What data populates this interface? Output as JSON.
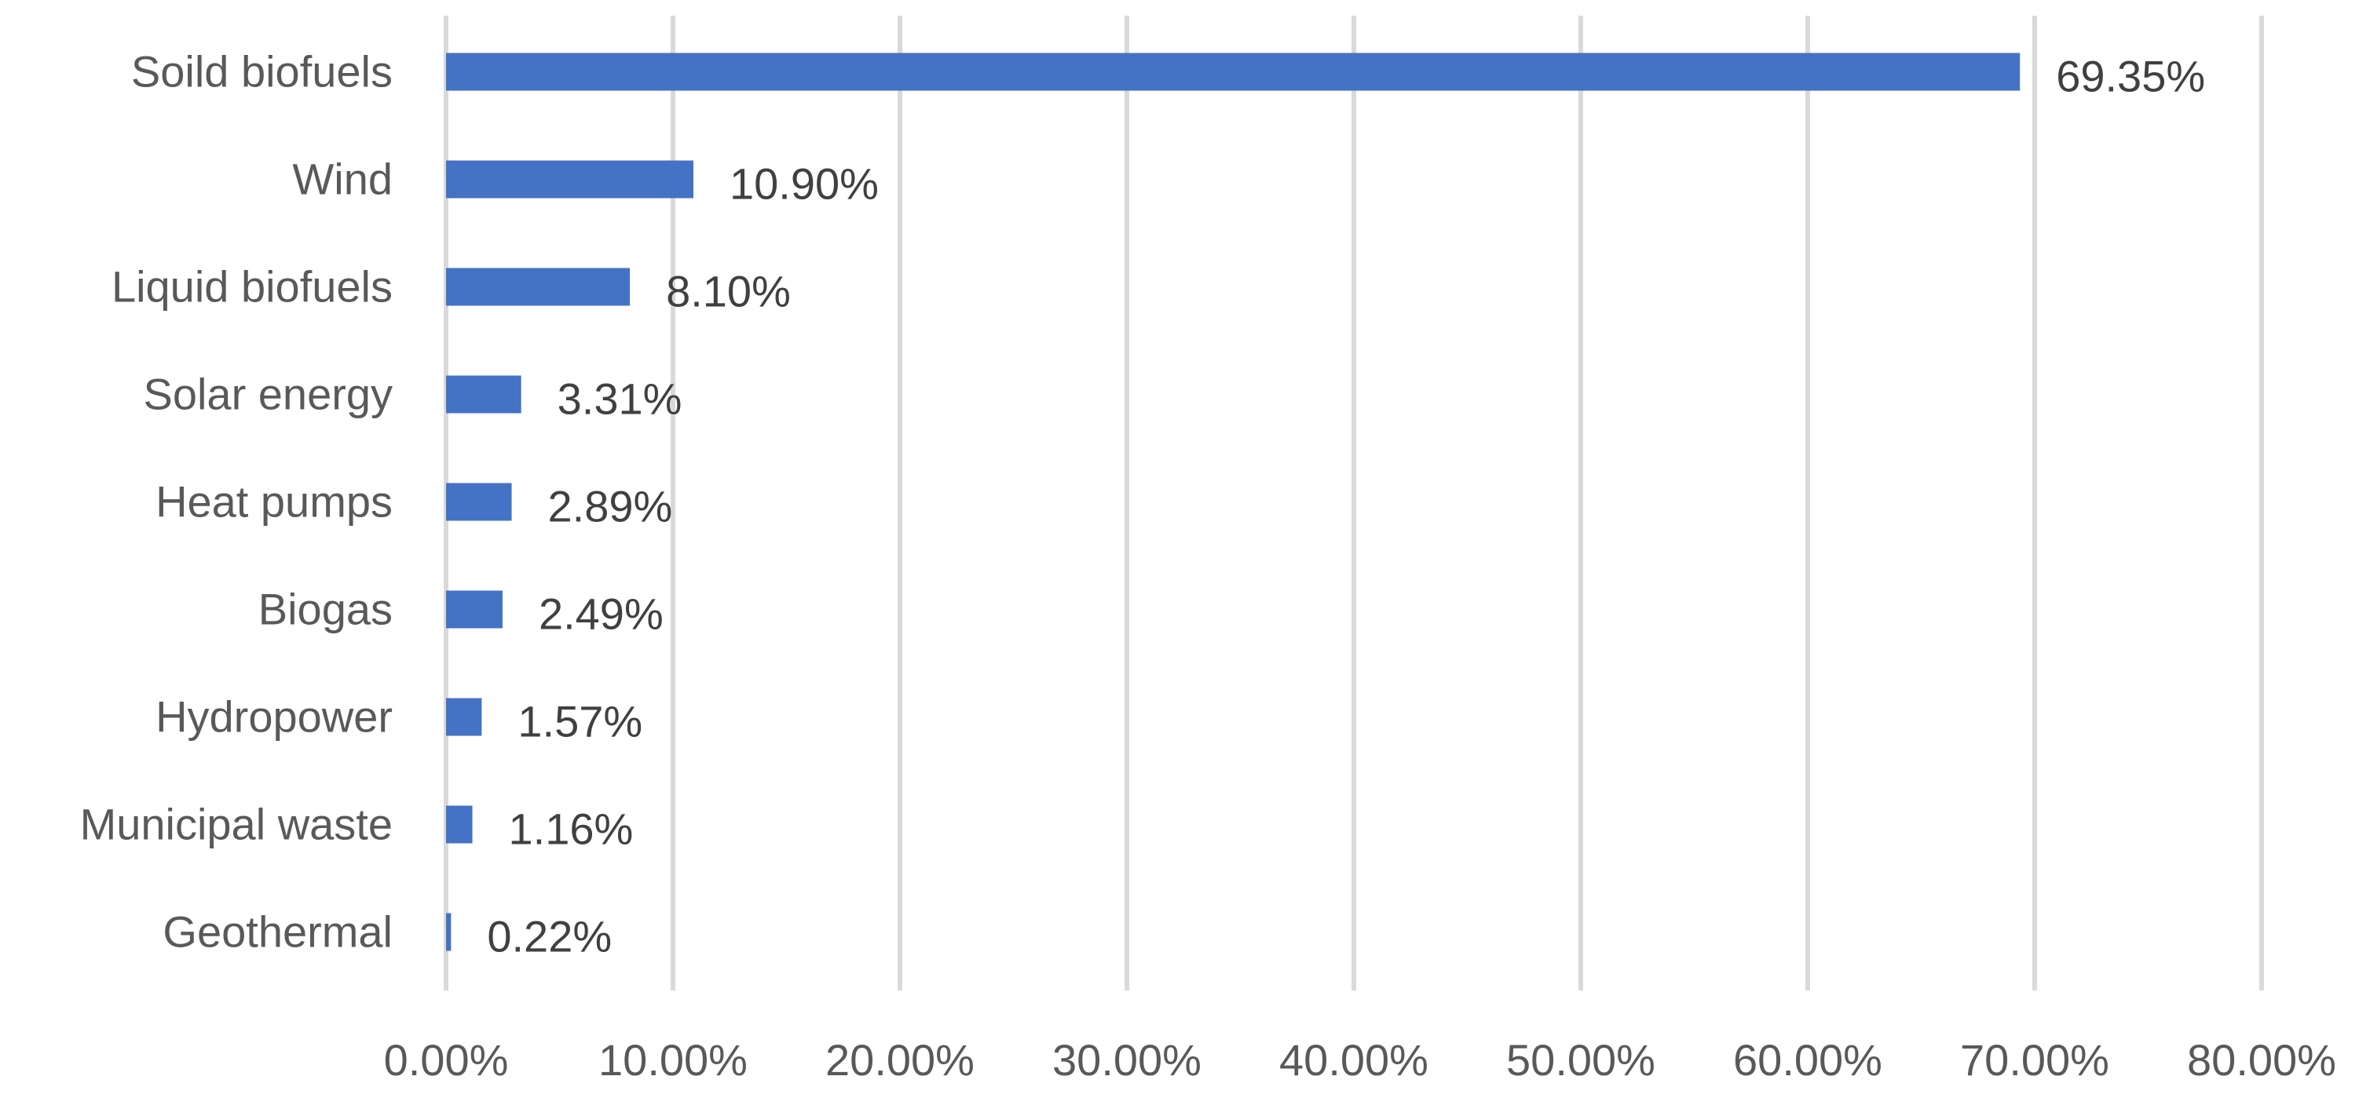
{
  "chart_data": {
    "type": "bar",
    "orientation": "horizontal",
    "categories": [
      "Soild biofuels",
      "Wind",
      "Liquid biofuels",
      "Solar energy",
      "Heat pumps",
      "Biogas",
      "Hydropower",
      "Municipal waste",
      "Geothermal"
    ],
    "values": [
      69.35,
      10.9,
      8.1,
      3.31,
      2.89,
      2.49,
      1.57,
      1.16,
      0.22
    ],
    "data_labels": [
      "69.35%",
      "10.90%",
      "8.10%",
      "3.31%",
      "2.89%",
      "2.49%",
      "1.57%",
      "1.16%",
      "0.22%"
    ],
    "xlim": [
      0,
      80
    ],
    "x_ticks": [
      0,
      10,
      20,
      30,
      40,
      50,
      60,
      70,
      80
    ],
    "x_tick_labels": [
      "0.00%",
      "10.00%",
      "20.00%",
      "30.00%",
      "40.00%",
      "50.00%",
      "60.00%",
      "70.00%",
      "80.00%"
    ],
    "title": "",
    "xlabel": "",
    "ylabel": "",
    "grid": "vertical",
    "legend": "none",
    "colors": {
      "bar": "#4472c4",
      "grid": "#d9d9d9",
      "label_text": "#595959",
      "value_text": "#404040"
    }
  }
}
